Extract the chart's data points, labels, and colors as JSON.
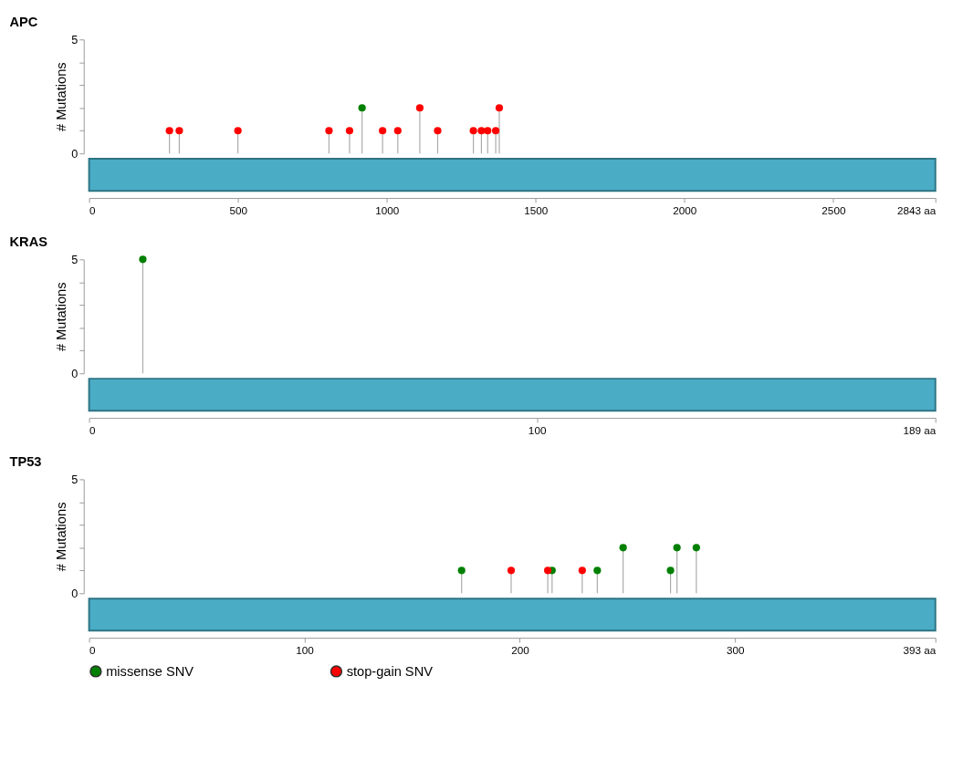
{
  "chart_data": [
    {
      "type": "lollipop",
      "title": "APC",
      "ylabel": "# Mutations",
      "xlim": [
        0,
        2843
      ],
      "ylim": [
        0,
        5
      ],
      "grid": false,
      "marker": "circle",
      "legend": false,
      "xticks": [
        0,
        500,
        1000,
        1500,
        2000,
        2500,
        {
          "value": 2843,
          "label": "2843 aa"
        }
      ],
      "yticks": [
        0,
        {
          "value": 1,
          "label": null
        },
        {
          "value": 2,
          "label": null
        },
        {
          "value": 3,
          "label": null
        },
        {
          "value": 4,
          "label": null
        },
        5
      ],
      "series": [
        {
          "color": "#008000",
          "x": [
            917
          ],
          "values": [
            2
          ]
        },
        {
          "color": "#ff0000",
          "x": [
            270,
            303,
            500,
            806,
            875,
            986,
            1037,
            1111,
            1171,
            1291,
            1318,
            1339,
            1366,
            1378
          ],
          "values": [
            1,
            1,
            1,
            1,
            1,
            1,
            1,
            2,
            1,
            1,
            1,
            1,
            1,
            2
          ]
        }
      ]
    },
    {
      "type": "lollipop",
      "title": "KRAS",
      "ylabel": "# Mutations",
      "xlim": [
        0,
        189
      ],
      "ylim": [
        0,
        5
      ],
      "grid": false,
      "marker": "circle",
      "legend": false,
      "xticks": [
        0,
        100,
        {
          "value": 189,
          "label": "189 aa"
        }
      ],
      "yticks": [
        0,
        {
          "value": 1,
          "label": null
        },
        {
          "value": 2,
          "label": null
        },
        {
          "value": 3,
          "label": null
        },
        {
          "value": 4,
          "label": null
        },
        5
      ],
      "series": [
        {
          "color": "#008000",
          "x": [
            12
          ],
          "values": [
            5
          ]
        }
      ]
    },
    {
      "type": "lollipop",
      "title": "TP53",
      "ylabel": "# Mutations",
      "xlim": [
        0,
        393
      ],
      "ylim": [
        0,
        5
      ],
      "grid": false,
      "marker": "circle",
      "legend": "bottom",
      "xticks": [
        0,
        100,
        200,
        300,
        {
          "value": 393,
          "label": "393 aa"
        }
      ],
      "yticks": [
        0,
        {
          "value": 1,
          "label": null
        },
        {
          "value": 2,
          "label": null
        },
        {
          "value": 3,
          "label": null
        },
        {
          "value": 4,
          "label": null
        },
        5
      ],
      "series": [
        {
          "name": "missense SNV",
          "color": "#008000",
          "x": [
            173,
            215,
            236,
            248,
            270,
            273,
            282
          ],
          "values": [
            1,
            1,
            1,
            2,
            1,
            2,
            2
          ]
        },
        {
          "name": "stop-gain SNV",
          "color": "#ff0000",
          "x": [
            196,
            213,
            229
          ],
          "values": [
            1,
            1,
            1
          ]
        }
      ]
    }
  ]
}
